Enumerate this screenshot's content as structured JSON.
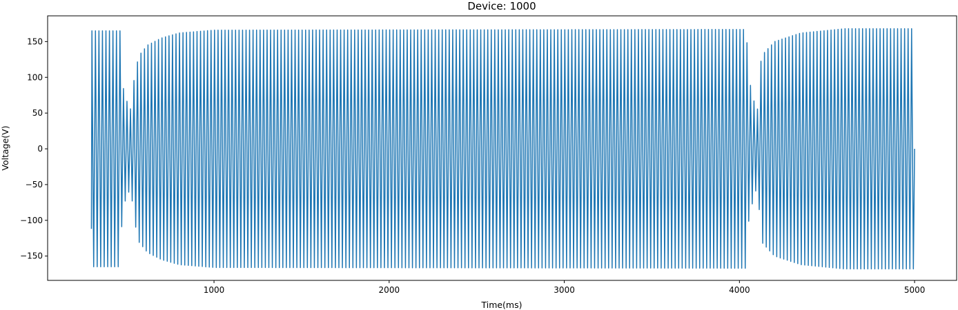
{
  "chart_data": {
    "type": "line",
    "title": "Device: 1000",
    "xlabel": "Time(ms)",
    "ylabel": "Voltage(V)",
    "xlim": [
      50,
      5240
    ],
    "ylim": [
      -184,
      186
    ],
    "xticks": [
      1000,
      2000,
      3000,
      4000,
      5000
    ],
    "yticks": [
      -150,
      -100,
      -50,
      0,
      50,
      100,
      150
    ],
    "grid": false,
    "legend": "none",
    "series": [
      {
        "color": "#1f77b4",
        "x_start": 300,
        "x_end": 5000,
        "period_ms": 20,
        "first_value": -112,
        "envelope": [
          {
            "t": 300,
            "amp": 165
          },
          {
            "t": 465,
            "amp": 165
          },
          {
            "t": 475,
            "amp": 95
          },
          {
            "t": 490,
            "amp": 75
          },
          {
            "t": 510,
            "amp": 62
          },
          {
            "t": 525,
            "amp": 55
          },
          {
            "t": 545,
            "amp": 100
          },
          {
            "t": 570,
            "amp": 130
          },
          {
            "t": 620,
            "amp": 145
          },
          {
            "t": 700,
            "amp": 155
          },
          {
            "t": 800,
            "amp": 162
          },
          {
            "t": 1000,
            "amp": 166
          },
          {
            "t": 4040,
            "amp": 167
          },
          {
            "t": 4050,
            "amp": 105
          },
          {
            "t": 4070,
            "amp": 80
          },
          {
            "t": 4090,
            "amp": 60
          },
          {
            "t": 4105,
            "amp": 55
          },
          {
            "t": 4125,
            "amp": 130
          },
          {
            "t": 4200,
            "amp": 150
          },
          {
            "t": 4350,
            "amp": 162
          },
          {
            "t": 4600,
            "amp": 168
          },
          {
            "t": 5000,
            "amp": 168
          }
        ]
      }
    ]
  }
}
